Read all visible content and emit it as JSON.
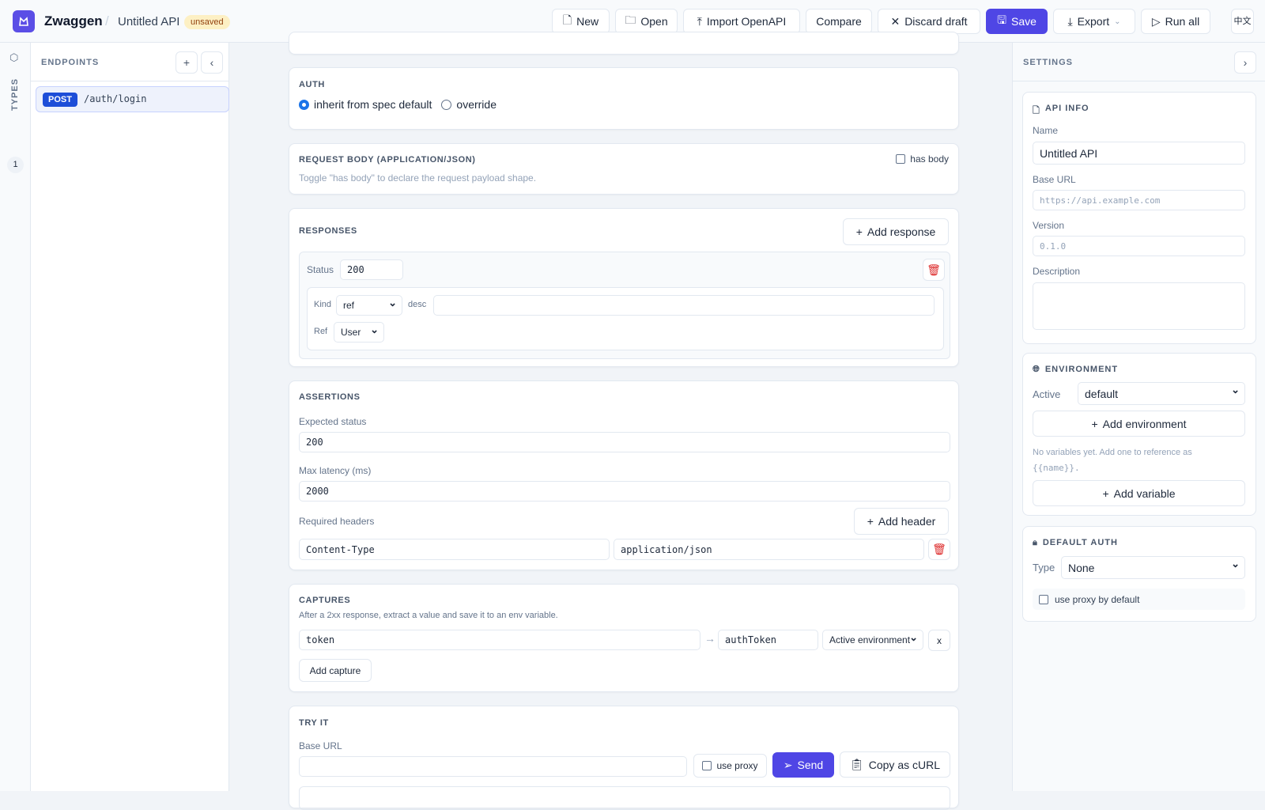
{
  "header": {
    "app_name": "Zwaggen",
    "api_name": "Untitled API",
    "status_badge": "unsaved",
    "buttons": {
      "new": "New",
      "open": "Open",
      "import": "Import OpenAPI",
      "compare": "Compare",
      "discard": "Discard draft",
      "save": "Save",
      "export": "Export",
      "run_all": "Run all",
      "lang": "中文"
    }
  },
  "rail": {
    "types_label": "TYPES",
    "types_count": "1"
  },
  "sidebar": {
    "title": "ENDPOINTS",
    "endpoints": [
      {
        "method": "POST",
        "path": "/auth/login"
      }
    ]
  },
  "auth": {
    "title": "AUTH",
    "options": [
      "inherit from spec default",
      "override"
    ],
    "selected": "inherit from spec default"
  },
  "request_body": {
    "title": "REQUEST BODY (APPLICATION/JSON)",
    "has_body_label": "has body",
    "has_body": false,
    "hint": "Toggle \"has body\" to declare the request payload shape."
  },
  "responses": {
    "title": "RESPONSES",
    "add_label": "Add response",
    "status_label": "Status",
    "status": "200",
    "kind_label": "Kind",
    "kind": "ref",
    "desc_label": "desc",
    "desc": "",
    "ref_label": "Ref",
    "ref": "User"
  },
  "assertions": {
    "title": "ASSERTIONS",
    "expected_status_label": "Expected status",
    "expected_status": "200",
    "max_latency_label": "Max latency (ms)",
    "max_latency": "2000",
    "required_headers_label": "Required headers",
    "add_header_label": "Add header",
    "headers": [
      {
        "name": "Content-Type",
        "value": "application/json"
      }
    ]
  },
  "captures": {
    "title": "CAPTURES",
    "hint": "After a 2xx response, extract a value and save it to an env variable.",
    "rows": [
      {
        "path": "token",
        "variable": "authToken",
        "target": "Active environment"
      }
    ],
    "remove_label": "x",
    "add_label": "Add capture"
  },
  "try_it": {
    "title": "TRY IT",
    "base_url_label": "Base URL",
    "base_url": "",
    "use_proxy_label": "use proxy",
    "send_label": "Send",
    "copy_curl_label": "Copy as cURL"
  },
  "settings": {
    "title": "SETTINGS",
    "api_info": {
      "title": "API INFO",
      "name_label": "Name",
      "name": "Untitled API",
      "base_url_label": "Base URL",
      "base_url_placeholder": "https://api.example.com",
      "version_label": "Version",
      "version_placeholder": "0.1.0",
      "description_label": "Description"
    },
    "environment": {
      "title": "ENVIRONMENT",
      "active_label": "Active",
      "active": "default",
      "add_env_label": "Add environment",
      "empty_hint": "No variables yet. Add one to reference as",
      "empty_hint_code": "{{name}}.",
      "add_var_label": "Add variable"
    },
    "default_auth": {
      "title": "DEFAULT AUTH",
      "type_label": "Type",
      "type": "None",
      "use_proxy_label": "use proxy by default"
    }
  },
  "colors": {
    "accent": "#4f46e5",
    "post": "#1d4ed8",
    "danger": "#dc2626"
  }
}
